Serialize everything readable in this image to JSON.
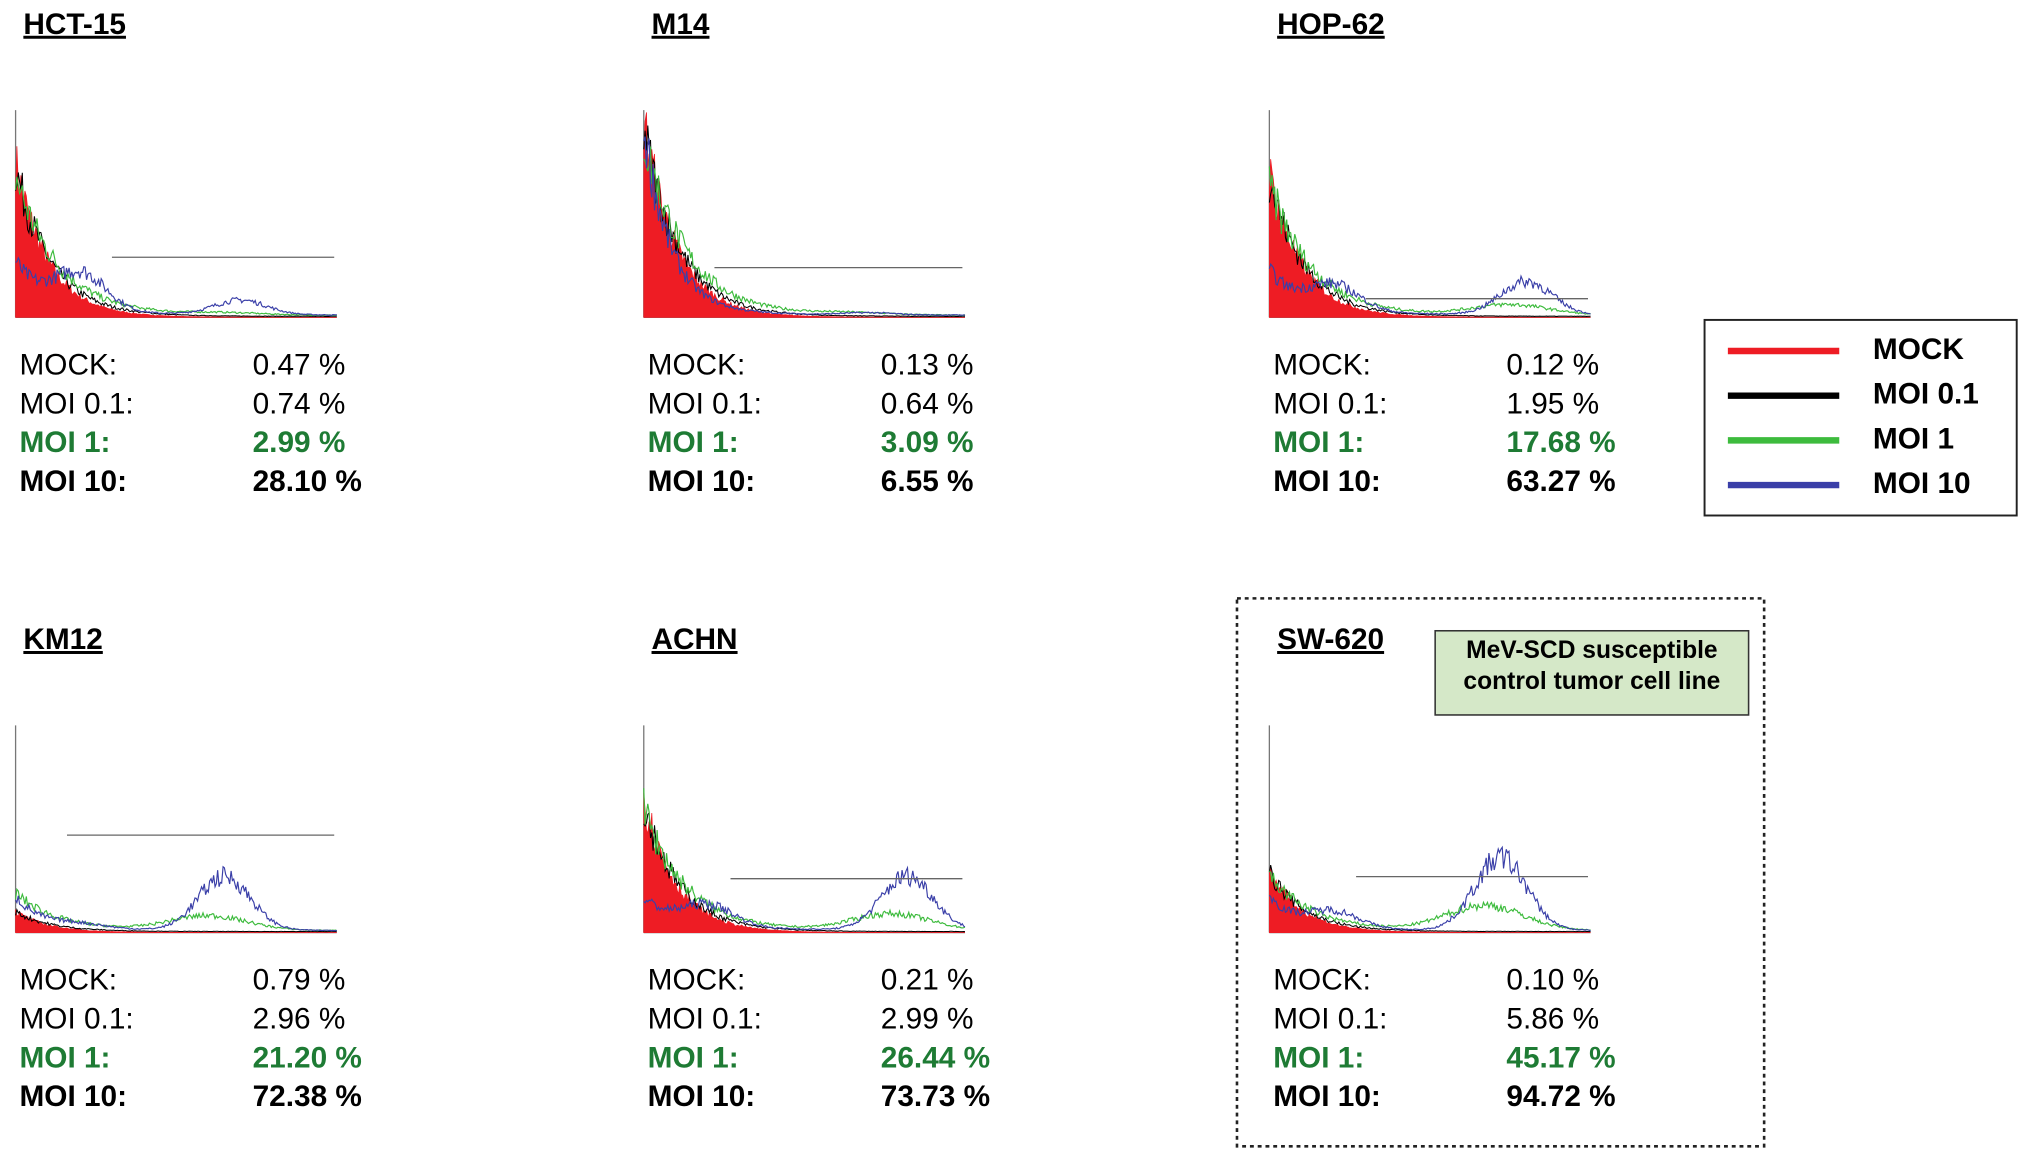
{
  "panels": [
    {
      "title": "HCT-15",
      "rows": [
        {
          "label": "MOCK:",
          "value": "0.47 %"
        },
        {
          "label": "MOI 0.1:",
          "value": "0.74 %"
        },
        {
          "label": "MOI 1:",
          "value": "2.99 %"
        },
        {
          "label": "MOI 10:",
          "value": "28.10 %"
        }
      ]
    },
    {
      "title": "M14",
      "rows": [
        {
          "label": "MOCK:",
          "value": "0.13 %"
        },
        {
          "label": "MOI 0.1:",
          "value": "0.64 %"
        },
        {
          "label": "MOI 1:",
          "value": "3.09 %"
        },
        {
          "label": "MOI 10:",
          "value": "6.55 %"
        }
      ]
    },
    {
      "title": "HOP-62",
      "rows": [
        {
          "label": "MOCK:",
          "value": "0.12 %"
        },
        {
          "label": "MOI 0.1:",
          "value": "1.95 %"
        },
        {
          "label": "MOI 1:",
          "value": "17.68 %"
        },
        {
          "label": "MOI 10:",
          "value": "63.27 %"
        }
      ]
    },
    {
      "title": "KM12",
      "rows": [
        {
          "label": "MOCK:",
          "value": "0.79 %"
        },
        {
          "label": "MOI 0.1:",
          "value": "2.96 %"
        },
        {
          "label": "MOI 1:",
          "value": "21.20 %"
        },
        {
          "label": "MOI 10:",
          "value": "72.38 %"
        }
      ]
    },
    {
      "title": "ACHN",
      "rows": [
        {
          "label": "MOCK:",
          "value": "0.21 %"
        },
        {
          "label": "MOI 0.1:",
          "value": "2.99 %"
        },
        {
          "label": "MOI 1:",
          "value": "26.44 %"
        },
        {
          "label": "MOI 10:",
          "value": "73.73 %"
        }
      ]
    },
    {
      "title": "SW-620",
      "rows": [
        {
          "label": "MOCK:",
          "value": "0.10 %"
        },
        {
          "label": "MOI 0.1:",
          "value": "5.86 %"
        },
        {
          "label": "MOI 1:",
          "value": "45.17 %"
        },
        {
          "label": "MOI 10:",
          "value": "94.72 %"
        }
      ]
    }
  ],
  "legend": {
    "items": [
      {
        "label": "MOCK",
        "color": "#ee1c24"
      },
      {
        "label": "MOI 0.1",
        "color": "#000000"
      },
      {
        "label": "MOI 1",
        "color": "#3dbb3d"
      },
      {
        "label": "MOI 10",
        "color": "#3a3fa8"
      }
    ]
  },
  "note": {
    "lines": [
      "MeV-SCD susceptible",
      "control tumor cell line"
    ]
  }
}
